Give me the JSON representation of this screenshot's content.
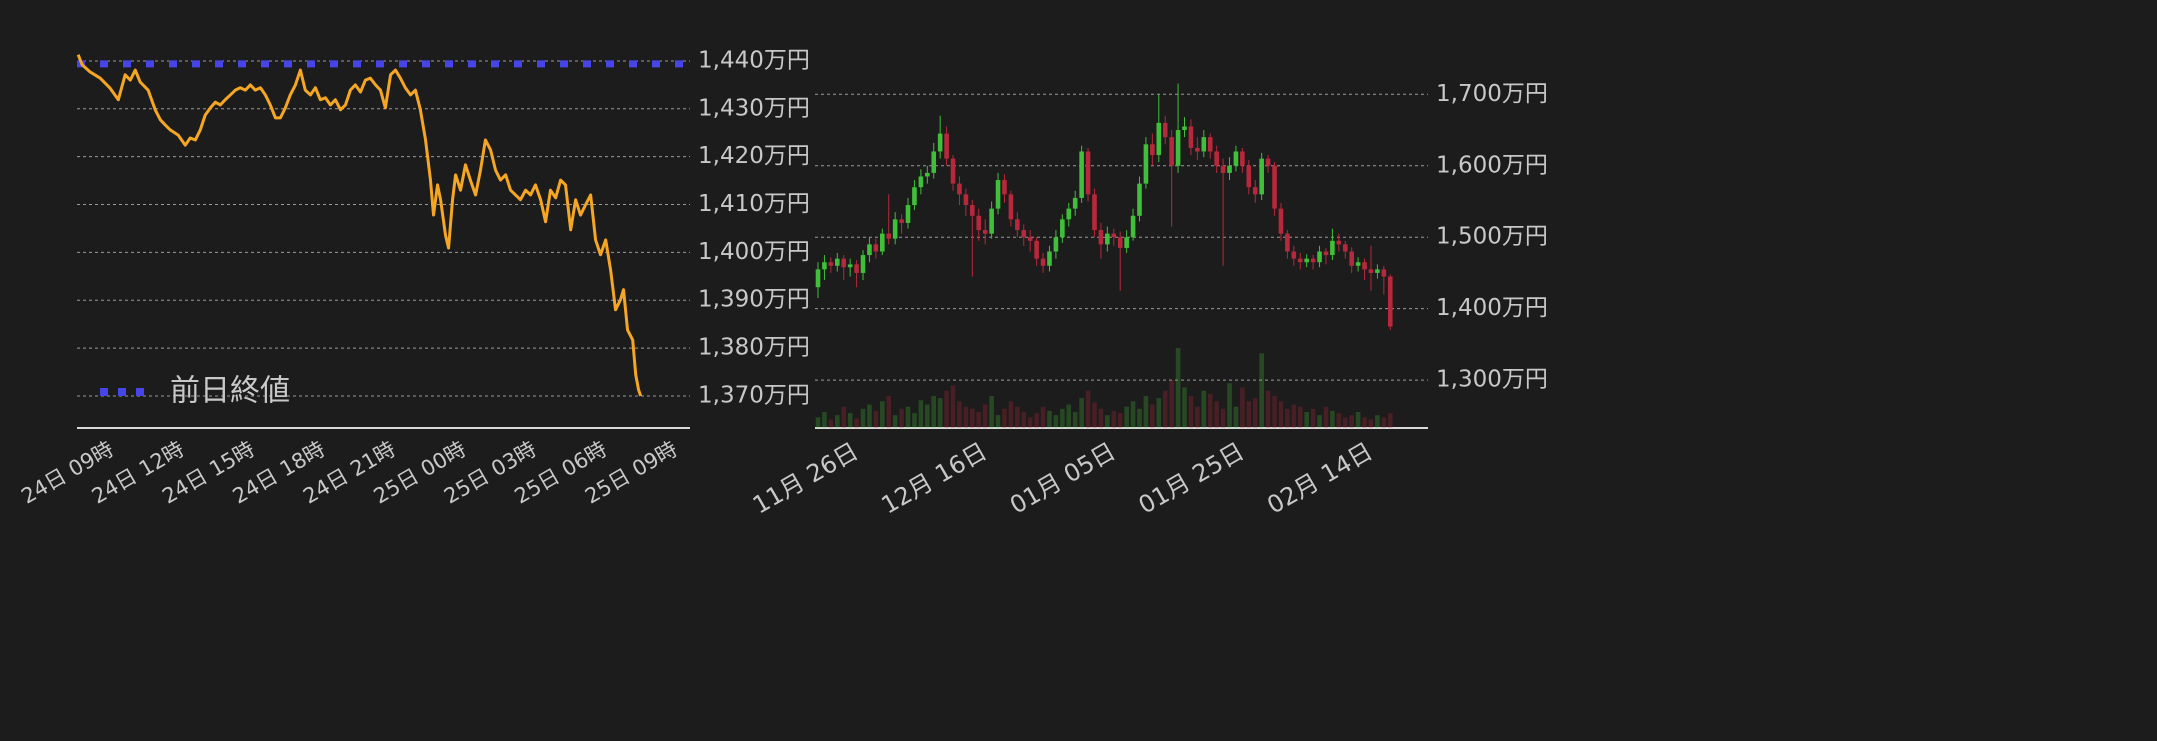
{
  "chart_data": [
    {
      "type": "line",
      "x": [
        7.55,
        7.72,
        8.06,
        8.49,
        8.91,
        9.26,
        9.55,
        9.77,
        9.98,
        10.19,
        10.53,
        10.83,
        11.05,
        11.26,
        11.47,
        11.81,
        12.11,
        12.32,
        12.54,
        12.75,
        12.96,
        13.18,
        13.39,
        13.6,
        13.81,
        14.03,
        14.24,
        14.45,
        14.67,
        14.88,
        15.09,
        15.31,
        15.52,
        15.73,
        15.95,
        16.16,
        16.37,
        16.58,
        16.8,
        17.01,
        17.22,
        17.44,
        17.65,
        17.86,
        18.08,
        18.29,
        18.5,
        18.72,
        18.93,
        19.14,
        19.35,
        19.57,
        19.78,
        19.99,
        20.21,
        20.42,
        20.63,
        20.85,
        21.06,
        21.27,
        21.48,
        21.7,
        21.91,
        22.12,
        22.34,
        22.55,
        22.68,
        22.85,
        22.98,
        23.19,
        23.32,
        23.49,
        23.62,
        23.83,
        24.04,
        24.25,
        24.47,
        24.68,
        24.89,
        25.11,
        25.32,
        25.53,
        25.75,
        25.96,
        26.17,
        26.38,
        26.6,
        26.81,
        27.02,
        27.24,
        27.45,
        27.66,
        27.88,
        28.09,
        28.3,
        28.52,
        28.73,
        28.94,
        29.15,
        29.37,
        29.58,
        29.79,
        30.01,
        30.22,
        30.43,
        30.64,
        30.77,
        30.94,
        31.16,
        31.29,
        31.41,
        31.5
      ],
      "values": [
        1441.3,
        1439.2,
        1437.7,
        1436.4,
        1434.3,
        1431.9,
        1437.1,
        1436.0,
        1438.1,
        1435.6,
        1433.9,
        1429.8,
        1427.7,
        1426.6,
        1425.6,
        1424.5,
        1422.4,
        1423.9,
        1423.5,
        1425.6,
        1428.7,
        1430.2,
        1431.4,
        1430.8,
        1431.9,
        1432.9,
        1433.9,
        1434.4,
        1433.9,
        1435.0,
        1433.9,
        1434.4,
        1432.9,
        1430.8,
        1428.1,
        1428.1,
        1430.2,
        1432.9,
        1435.0,
        1438.1,
        1433.9,
        1432.9,
        1434.4,
        1431.9,
        1432.3,
        1430.8,
        1431.9,
        1429.8,
        1430.8,
        1433.9,
        1435.0,
        1433.5,
        1436.0,
        1436.4,
        1435.0,
        1433.9,
        1430.2,
        1437.1,
        1438.1,
        1436.4,
        1434.4,
        1432.9,
        1433.9,
        1429.8,
        1423.5,
        1415.1,
        1407.8,
        1414.1,
        1411.0,
        1403.6,
        1400.9,
        1411.0,
        1416.2,
        1413.0,
        1418.3,
        1415.1,
        1412.0,
        1417.2,
        1423.5,
        1421.4,
        1417.2,
        1415.1,
        1416.2,
        1413.0,
        1412.0,
        1411.0,
        1413.0,
        1412.0,
        1414.1,
        1411.0,
        1406.4,
        1413.0,
        1411.4,
        1415.1,
        1414.1,
        1404.7,
        1411.0,
        1407.8,
        1409.9,
        1412.0,
        1402.6,
        1399.5,
        1402.6,
        1396.3,
        1388.0,
        1390.1,
        1392.2,
        1383.8,
        1381.7,
        1374.4,
        1371.3,
        1370.0
      ],
      "color": "#f5a623",
      "reference_line": {
        "name": "前日終値",
        "value": 1439.4,
        "color": "#4646e8"
      },
      "xlim": [
        7.5,
        33.6
      ],
      "xticks": [
        {
          "value": 9,
          "label": "24日 09時"
        },
        {
          "value": 12,
          "label": "24日 12時"
        },
        {
          "value": 15,
          "label": "24日 15時"
        },
        {
          "value": 18,
          "label": "24日 18時"
        },
        {
          "value": 21,
          "label": "24日 21時"
        },
        {
          "value": 24,
          "label": "25日 00時"
        },
        {
          "value": 27,
          "label": "25日 03時"
        },
        {
          "value": 30,
          "label": "25日 06時"
        },
        {
          "value": 33,
          "label": "25日 09時"
        }
      ],
      "ylim": [
        1363.3,
        1443.0
      ],
      "yticks": [
        {
          "value": 1370,
          "label": "1,370万円"
        },
        {
          "value": 1380,
          "label": "1,380万円"
        },
        {
          "value": 1390,
          "label": "1,390万円"
        },
        {
          "value": 1400,
          "label": "1,400万円"
        },
        {
          "value": 1410,
          "label": "1,410万円"
        },
        {
          "value": 1420,
          "label": "1,420万円"
        },
        {
          "value": 1430,
          "label": "1,430万円"
        },
        {
          "value": 1440,
          "label": "1,440万円"
        }
      ],
      "grid": true
    },
    {
      "type": "candlestick",
      "categories": [
        null,
        null,
        null,
        null,
        null,
        null,
        "11月 26日",
        null,
        null,
        null,
        null,
        null,
        null,
        null,
        null,
        null,
        null,
        null,
        null,
        null,
        null,
        null,
        null,
        null,
        null,
        null,
        "12月 16日",
        null,
        null,
        null,
        null,
        null,
        null,
        null,
        null,
        null,
        null,
        null,
        null,
        null,
        null,
        null,
        null,
        null,
        null,
        null,
        "01月 05日",
        null,
        null,
        null,
        null,
        null,
        null,
        null,
        null,
        null,
        null,
        null,
        null,
        null,
        null,
        null,
        null,
        null,
        null,
        null,
        "01月 25日",
        null,
        null,
        null,
        null,
        null,
        null,
        null,
        null,
        null,
        null,
        null,
        null,
        null,
        null,
        null,
        null,
        null,
        null,
        null,
        "02月 14日",
        null,
        null,
        null
      ],
      "open": [
        1430,
        1455,
        1465,
        1460,
        1470,
        1458,
        1462,
        1450,
        1475,
        1490,
        1480,
        1505,
        1498,
        1525,
        1520,
        1545,
        1570,
        1585,
        1590,
        1620,
        1645,
        1610,
        1575,
        1560,
        1545,
        1530,
        1510,
        1505,
        1540,
        1580,
        1560,
        1525,
        1510,
        1500,
        1495,
        1470,
        1460,
        1480,
        1500,
        1525,
        1540,
        1555,
        1620,
        1560,
        1510,
        1490,
        1505,
        1500,
        1485,
        1500,
        1530,
        1575,
        1630,
        1615,
        1660,
        1640,
        1600,
        1650,
        1655,
        1625,
        1620,
        1640,
        1620,
        1600,
        1590,
        1600,
        1620,
        1600,
        1570,
        1560,
        1610,
        1600,
        1540,
        1505,
        1480,
        1470,
        1465,
        1470,
        1465,
        1480,
        1475,
        1495,
        1490,
        1480,
        1460,
        1465,
        1455,
        1450,
        1455,
        1445
      ],
      "high": [
        1465,
        1475,
        1472,
        1478,
        1475,
        1470,
        1468,
        1482,
        1500,
        1498,
        1512,
        1560,
        1535,
        1532,
        1555,
        1580,
        1595,
        1600,
        1632,
        1670,
        1655,
        1615,
        1585,
        1568,
        1552,
        1540,
        1525,
        1550,
        1590,
        1588,
        1565,
        1535,
        1518,
        1510,
        1500,
        1478,
        1488,
        1510,
        1532,
        1548,
        1565,
        1628,
        1625,
        1568,
        1520,
        1515,
        1512,
        1508,
        1510,
        1540,
        1585,
        1640,
        1645,
        1700,
        1670,
        1650,
        1715,
        1668,
        1665,
        1640,
        1650,
        1645,
        1628,
        1610,
        1612,
        1628,
        1625,
        1608,
        1580,
        1618,
        1615,
        1605,
        1548,
        1510,
        1488,
        1478,
        1476,
        1475,
        1488,
        1485,
        1512,
        1505,
        1495,
        1486,
        1472,
        1470,
        1488,
        1462,
        1460,
        1448
      ],
      "low": [
        1415,
        1440,
        1450,
        1452,
        1440,
        1445,
        1430,
        1440,
        1465,
        1470,
        1475,
        1490,
        1490,
        1505,
        1512,
        1538,
        1560,
        1575,
        1582,
        1610,
        1600,
        1565,
        1545,
        1530,
        1445,
        1495,
        1490,
        1498,
        1532,
        1548,
        1515,
        1500,
        1488,
        1480,
        1460,
        1450,
        1452,
        1470,
        1492,
        1515,
        1530,
        1548,
        1550,
        1500,
        1470,
        1480,
        1488,
        1425,
        1478,
        1495,
        1522,
        1568,
        1600,
        1605,
        1630,
        1515,
        1590,
        1640,
        1615,
        1608,
        1612,
        1610,
        1590,
        1460,
        1580,
        1592,
        1590,
        1560,
        1548,
        1552,
        1590,
        1530,
        1495,
        1470,
        1460,
        1455,
        1458,
        1455,
        1458,
        1462,
        1468,
        1480,
        1470,
        1450,
        1452,
        1440,
        1425,
        1442,
        1420,
        1370
      ],
      "close": [
        1455,
        1465,
        1460,
        1470,
        1458,
        1462,
        1450,
        1475,
        1490,
        1480,
        1505,
        1498,
        1525,
        1520,
        1545,
        1570,
        1585,
        1590,
        1620,
        1645,
        1610,
        1575,
        1560,
        1545,
        1530,
        1510,
        1505,
        1540,
        1580,
        1560,
        1525,
        1510,
        1500,
        1495,
        1470,
        1460,
        1480,
        1500,
        1525,
        1540,
        1555,
        1620,
        1560,
        1510,
        1490,
        1505,
        1500,
        1485,
        1500,
        1530,
        1575,
        1630,
        1615,
        1660,
        1640,
        1600,
        1650,
        1655,
        1625,
        1620,
        1640,
        1620,
        1600,
        1590,
        1600,
        1620,
        1600,
        1570,
        1560,
        1610,
        1600,
        1540,
        1505,
        1480,
        1470,
        1465,
        1470,
        1465,
        1480,
        1475,
        1495,
        1490,
        1480,
        1460,
        1465,
        1455,
        1450,
        1455,
        1445,
        1375
      ],
      "volume": [
        10,
        15,
        8,
        12,
        20,
        14,
        9,
        18,
        22,
        16,
        25,
        30,
        12,
        18,
        20,
        14,
        26,
        22,
        30,
        28,
        35,
        40,
        25,
        20,
        18,
        15,
        22,
        30,
        12,
        18,
        25,
        20,
        15,
        10,
        14,
        20,
        16,
        12,
        18,
        22,
        15,
        28,
        35,
        24,
        18,
        12,
        16,
        14,
        20,
        25,
        18,
        30,
        22,
        28,
        35,
        45,
        75,
        38,
        30,
        20,
        35,
        32,
        25,
        18,
        42,
        20,
        38,
        25,
        28,
        70,
        35,
        30,
        25,
        18,
        22,
        20,
        15,
        18,
        12,
        20,
        16,
        14,
        10,
        12,
        15,
        10,
        8,
        12,
        10,
        14
      ],
      "up_color": "#3fbf3a",
      "down_color": "#b8283c",
      "ylim": [
        1233,
        1748
      ],
      "yticks": [
        {
          "value": 1300,
          "label": "1,300万円"
        },
        {
          "value": 1400,
          "label": "1,400万円"
        },
        {
          "value": 1500,
          "label": "1,500万円"
        },
        {
          "value": 1600,
          "label": "1,600万円"
        },
        {
          "value": 1700,
          "label": "1,700万円"
        }
      ],
      "grid": true
    }
  ]
}
